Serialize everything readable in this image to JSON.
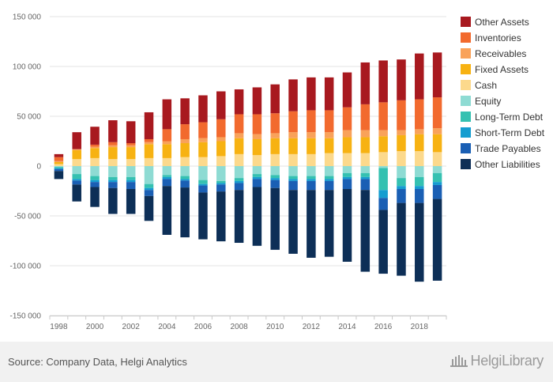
{
  "chart_data": {
    "type": "bar",
    "stacked": true,
    "categories": [
      "1998",
      "1999",
      "2000",
      "2001",
      "2002",
      "2003",
      "2004",
      "2005",
      "2006",
      "2007",
      "2008",
      "2009",
      "2010",
      "2011",
      "2012",
      "2013",
      "2014",
      "2015",
      "2016",
      "2017",
      "2018",
      "2019"
    ],
    "x_tick_labels": [
      "1998",
      "2000",
      "2002",
      "2004",
      "2006",
      "2008",
      "2010",
      "2012",
      "2014",
      "2016",
      "2018"
    ],
    "y_ticks": [
      150000,
      100000,
      50000,
      0,
      -50000,
      -100000,
      -150000
    ],
    "y_tick_labels": [
      "150 000",
      "100 000",
      "50 000",
      "0",
      "-50 000",
      "-100 000",
      "-150 000"
    ],
    "ylim": [
      -150000,
      150000
    ],
    "title": "",
    "xlabel": "",
    "ylabel": "",
    "legend_position": "right",
    "grid": "horizontal",
    "series": [
      {
        "name": "Other Assets",
        "color": "#a8191f",
        "side": "asset",
        "values": [
          3000,
          17000,
          18000,
          22000,
          22000,
          27000,
          30000,
          26000,
          27000,
          28000,
          25000,
          27000,
          29000,
          32000,
          33000,
          33000,
          35000,
          42000,
          42000,
          41000,
          46000,
          45000
        ]
      },
      {
        "name": "Inventories",
        "color": "#f26a2e",
        "side": "asset",
        "values": [
          4000,
          0,
          2000,
          3000,
          2000,
          3000,
          12000,
          15000,
          16000,
          18000,
          19000,
          20000,
          20000,
          21000,
          22000,
          22000,
          23000,
          26000,
          28000,
          30000,
          30000,
          31000
        ]
      },
      {
        "name": "Receivables",
        "color": "#f9a25a",
        "side": "asset",
        "values": [
          1000,
          1000,
          1500,
          2000,
          2000,
          2000,
          3000,
          4000,
          4000,
          4000,
          5000,
          5000,
          5000,
          6000,
          6000,
          6000,
          7000,
          7000,
          6000,
          5000,
          5000,
          6000
        ]
      },
      {
        "name": "Fixed Assets",
        "color": "#f7b212",
        "side": "asset",
        "values": [
          2000,
          9000,
          10000,
          12000,
          12000,
          14000,
          14000,
          14000,
          15000,
          15000,
          16000,
          16000,
          16000,
          16000,
          16000,
          15000,
          16000,
          16000,
          16000,
          16000,
          17000,
          18000
        ]
      },
      {
        "name": "Cash",
        "color": "#fcd98c",
        "side": "asset",
        "values": [
          2000,
          7000,
          8000,
          7000,
          7000,
          8000,
          8000,
          9000,
          9000,
          10000,
          12000,
          11000,
          12000,
          12000,
          12000,
          13000,
          13000,
          13000,
          14000,
          15000,
          15000,
          14000
        ]
      },
      {
        "name": "Equity",
        "color": "#8edbd3",
        "side": "liability",
        "values": [
          -1000,
          -8000,
          -10000,
          -11000,
          -11000,
          -18000,
          -9000,
          -10000,
          -14000,
          -15000,
          -12000,
          -8000,
          -9000,
          -10000,
          -10000,
          -10000,
          -7000,
          -7000,
          -2000,
          -12000,
          -11000,
          -7000
        ]
      },
      {
        "name": "Long-Term Debt",
        "color": "#35c1b1",
        "side": "liability",
        "values": [
          -1000,
          -5000,
          -4000,
          -3000,
          -3000,
          -4000,
          -2000,
          -3000,
          -4000,
          -2000,
          -3000,
          -3000,
          -3000,
          -3000,
          -3000,
          -3000,
          -4000,
          -4000,
          -22000,
          -8000,
          -9000,
          -9000
        ]
      },
      {
        "name": "Short-Term Debt",
        "color": "#159dd0",
        "side": "liability",
        "values": [
          -1000,
          -1500,
          -2000,
          -2000,
          -2000,
          -2000,
          -2000,
          -1500,
          -1500,
          -1500,
          -2000,
          -2000,
          -2000,
          -2000,
          -2000,
          -2000,
          -2000,
          -2000,
          -8000,
          -3000,
          -3000,
          -3000
        ]
      },
      {
        "name": "Trade Payables",
        "color": "#1a5fb4",
        "side": "liability",
        "values": [
          -2000,
          -4000,
          -5000,
          -6000,
          -7000,
          -6000,
          -7000,
          -7000,
          -7000,
          -7000,
          -7000,
          -8000,
          -8000,
          -9000,
          -9000,
          -9000,
          -10000,
          -11000,
          -12000,
          -14000,
          -14000,
          -14000
        ]
      },
      {
        "name": "Other Liabilities",
        "color": "#0d2f57",
        "side": "liability",
        "values": [
          -8000,
          -17000,
          -20000,
          -26000,
          -25000,
          -25000,
          -49000,
          -50000,
          -47000,
          -50000,
          -53000,
          -59000,
          -62000,
          -64000,
          -68000,
          -67000,
          -73000,
          -82000,
          -64000,
          -73000,
          -79000,
          -82000
        ]
      }
    ]
  },
  "footer": {
    "source": "Source: Company Data, Helgi Analytics",
    "brand": "HelgiLibrary",
    "logo_icon": "helgi-building-icon"
  }
}
